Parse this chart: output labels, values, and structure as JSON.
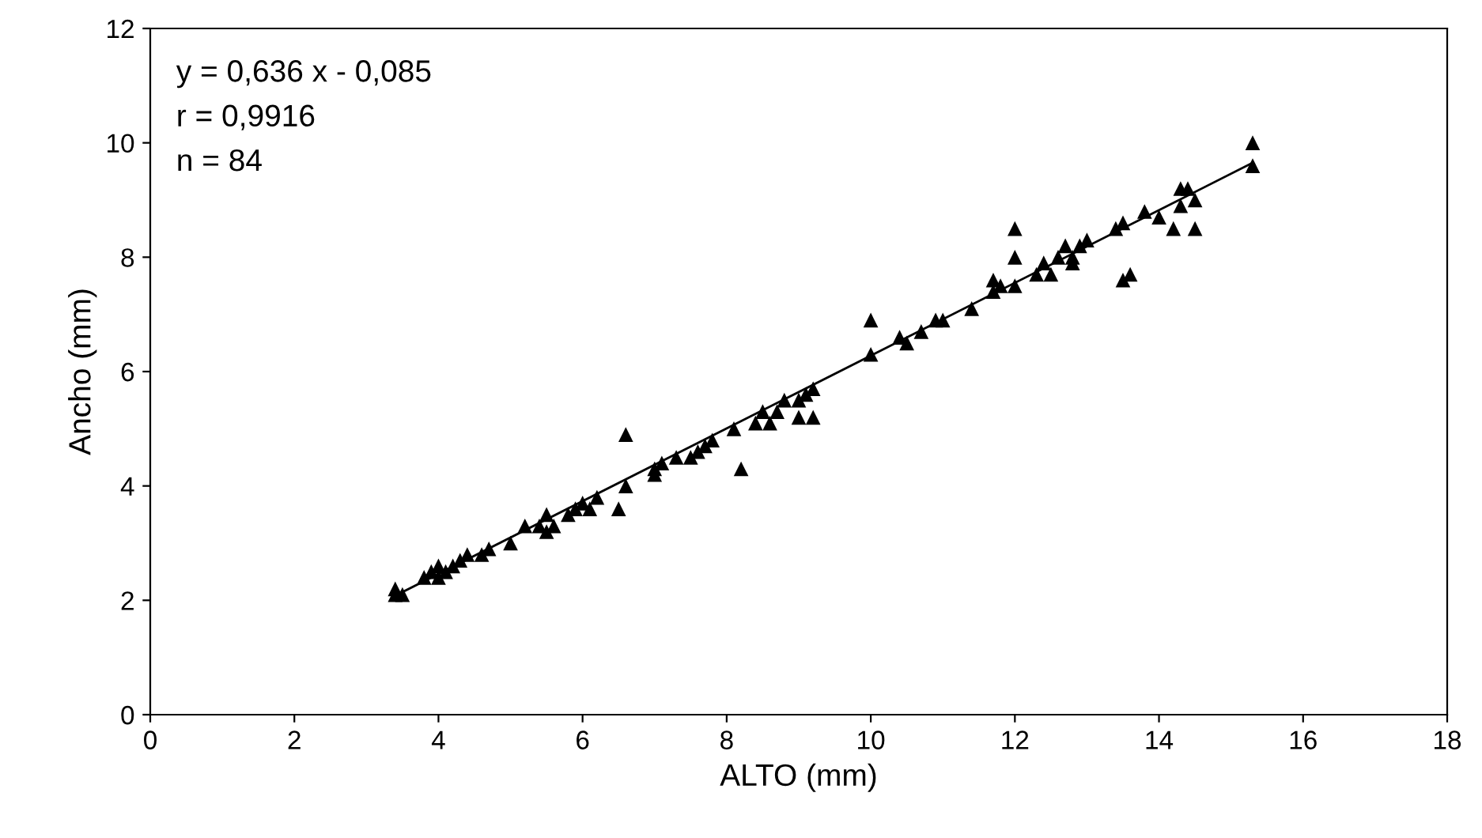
{
  "chart_data": {
    "type": "scatter",
    "xlabel": "ALTO (mm)",
    "ylabel": "Ancho (mm)",
    "xlim": [
      0,
      18
    ],
    "ylim": [
      0,
      12
    ],
    "xticks": [
      0,
      2,
      4,
      6,
      8,
      10,
      12,
      14,
      16,
      18
    ],
    "yticks": [
      0,
      2,
      4,
      6,
      8,
      10,
      12
    ],
    "grid": false,
    "legend": false,
    "annotations": [
      "y = 0,636 x - 0,085",
      "r = 0,9916",
      "n = 84"
    ],
    "series": [
      {
        "color": "#000000",
        "marker": "triangle",
        "x": [
          3.4,
          3.4,
          3.5,
          3.8,
          3.9,
          4.0,
          4.0,
          4.1,
          4.2,
          4.3,
          4.4,
          4.6,
          4.7,
          5.0,
          5.2,
          5.4,
          5.5,
          5.6,
          5.8,
          5.9,
          6.0,
          6.1,
          6.2,
          6.5,
          6.6,
          6.6,
          7.0,
          7.0,
          7.1,
          7.3,
          7.5,
          7.6,
          7.7,
          7.8,
          8.1,
          8.2,
          8.4,
          8.5,
          8.6,
          8.7,
          8.8,
          9.0,
          9.0,
          9.1,
          9.2,
          9.2,
          10.0,
          10.0,
          10.4,
          10.5,
          10.7,
          10.9,
          11.0,
          11.4,
          11.7,
          11.7,
          11.8,
          12.0,
          12.0,
          12.0,
          12.3,
          12.4,
          12.5,
          12.6,
          12.7,
          12.8,
          12.9,
          13.0,
          13.4,
          13.5,
          13.6,
          13.8,
          14.0,
          14.2,
          14.3,
          14.3,
          14.4,
          14.5,
          14.5,
          15.3,
          15.3,
          13.5,
          12.8,
          5.5
        ],
        "values": [
          2.2,
          2.1,
          2.1,
          2.4,
          2.5,
          2.6,
          2.4,
          2.5,
          2.6,
          2.7,
          2.8,
          2.8,
          2.9,
          3.0,
          3.3,
          3.3,
          3.5,
          3.3,
          3.5,
          3.6,
          3.7,
          3.6,
          3.8,
          3.6,
          4.9,
          4.0,
          4.2,
          4.3,
          4.4,
          4.5,
          4.5,
          4.6,
          4.7,
          4.8,
          5.0,
          4.3,
          5.1,
          5.3,
          5.1,
          5.3,
          5.5,
          5.2,
          5.5,
          5.6,
          5.2,
          5.7,
          6.9,
          6.3,
          6.6,
          6.5,
          6.7,
          6.9,
          6.9,
          7.1,
          7.4,
          7.6,
          7.5,
          8.5,
          7.5,
          8.0,
          7.7,
          7.9,
          7.7,
          8.0,
          8.2,
          8.0,
          8.2,
          8.3,
          8.5,
          7.6,
          7.7,
          8.8,
          8.7,
          8.5,
          8.9,
          9.2,
          9.2,
          9.0,
          8.5,
          10.0,
          9.6,
          8.6,
          7.9,
          3.2
        ]
      },
      {
        "type": "line",
        "color": "#000000",
        "marker": "none",
        "line_style": "solid",
        "x": [
          3.4,
          15.3
        ],
        "values": [
          2.08,
          9.65
        ]
      }
    ]
  }
}
